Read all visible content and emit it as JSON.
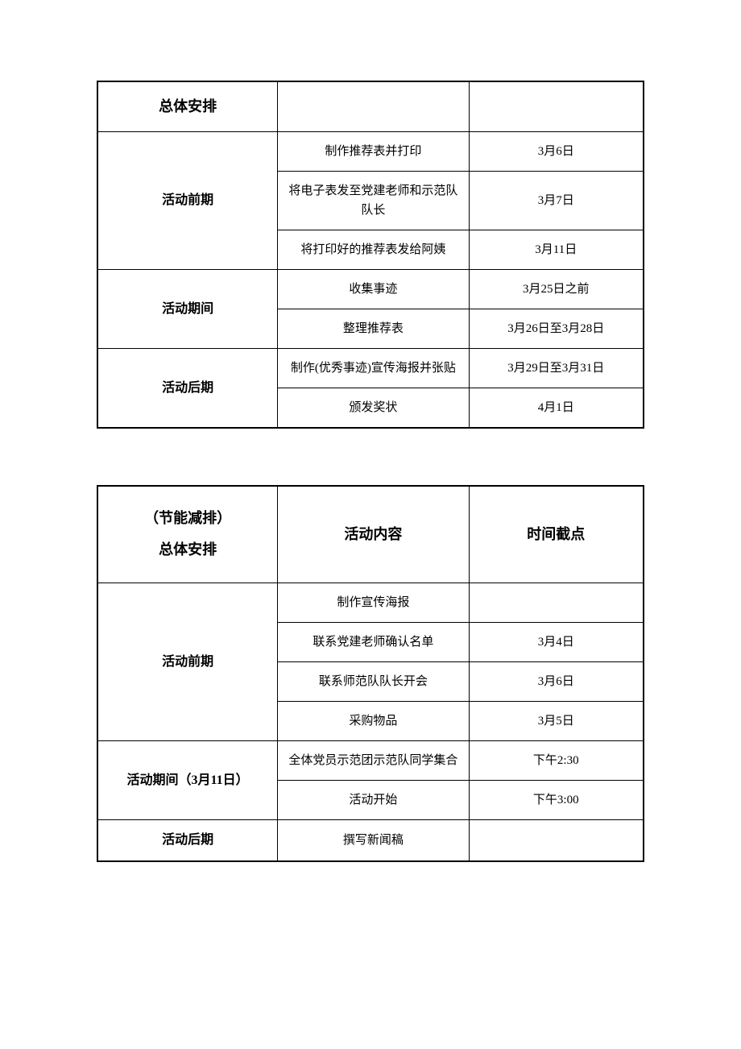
{
  "table1": {
    "type": "table",
    "border_color": "#000000",
    "background_color": "#ffffff",
    "text_color": "#000000",
    "header_fontsize": 18,
    "phase_fontsize": 16,
    "content_fontsize": 14,
    "outer_border_width": 2.5,
    "inner_border_width": 1,
    "columns": [
      {
        "width_pct": 33
      },
      {
        "width_pct": 35
      },
      {
        "width_pct": 32
      }
    ],
    "header": {
      "col1": "总体安排",
      "col2": "",
      "col3": ""
    },
    "phases": [
      {
        "name": "活动前期",
        "rows": [
          {
            "content": "制作推荐表并打印",
            "date": "3月6日"
          },
          {
            "content": "将电子表发至党建老师和示范队队长",
            "date": "3月7日"
          },
          {
            "content": "将打印好的推荐表发给阿姨",
            "date": "3月11日"
          }
        ]
      },
      {
        "name": "活动期间",
        "rows": [
          {
            "content": "收集事迹",
            "date": "3月25日之前"
          },
          {
            "content": "整理推荐表",
            "date": "3月26日至3月28日"
          }
        ]
      },
      {
        "name": "活动后期",
        "rows": [
          {
            "content": "制作(优秀事迹)宣传海报并张贴",
            "date": "3月29日至3月31日"
          },
          {
            "content": "颁发奖状",
            "date": "4月1日"
          }
        ]
      }
    ]
  },
  "table2": {
    "type": "table",
    "border_color": "#000000",
    "background_color": "#ffffff",
    "text_color": "#000000",
    "header_fontsize": 18,
    "phase_fontsize": 16,
    "content_fontsize": 14,
    "outer_border_width": 2.5,
    "inner_border_width": 1,
    "columns": [
      {
        "width_pct": 33
      },
      {
        "width_pct": 35
      },
      {
        "width_pct": 32
      }
    ],
    "header": {
      "col1_line1": "（节能减排）",
      "col1_line2": "总体安排",
      "col2": "活动内容",
      "col3": "时间截点"
    },
    "phases": [
      {
        "name": "活动前期",
        "rows": [
          {
            "content": "制作宣传海报",
            "date": ""
          },
          {
            "content": "联系党建老师确认名单",
            "date": "3月4日"
          },
          {
            "content": "联系师范队队长开会",
            "date": "3月6日"
          },
          {
            "content": "采购物品",
            "date": "3月5日"
          }
        ]
      },
      {
        "name": "活动期间（3月11日）",
        "rows": [
          {
            "content": "全体党员示范团示范队同学集合",
            "date": "下午2:30"
          },
          {
            "content": "活动开始",
            "date": "下午3:00"
          }
        ]
      },
      {
        "name": "活动后期",
        "rows": [
          {
            "content": "撰写新闻稿",
            "date": ""
          }
        ]
      }
    ]
  }
}
